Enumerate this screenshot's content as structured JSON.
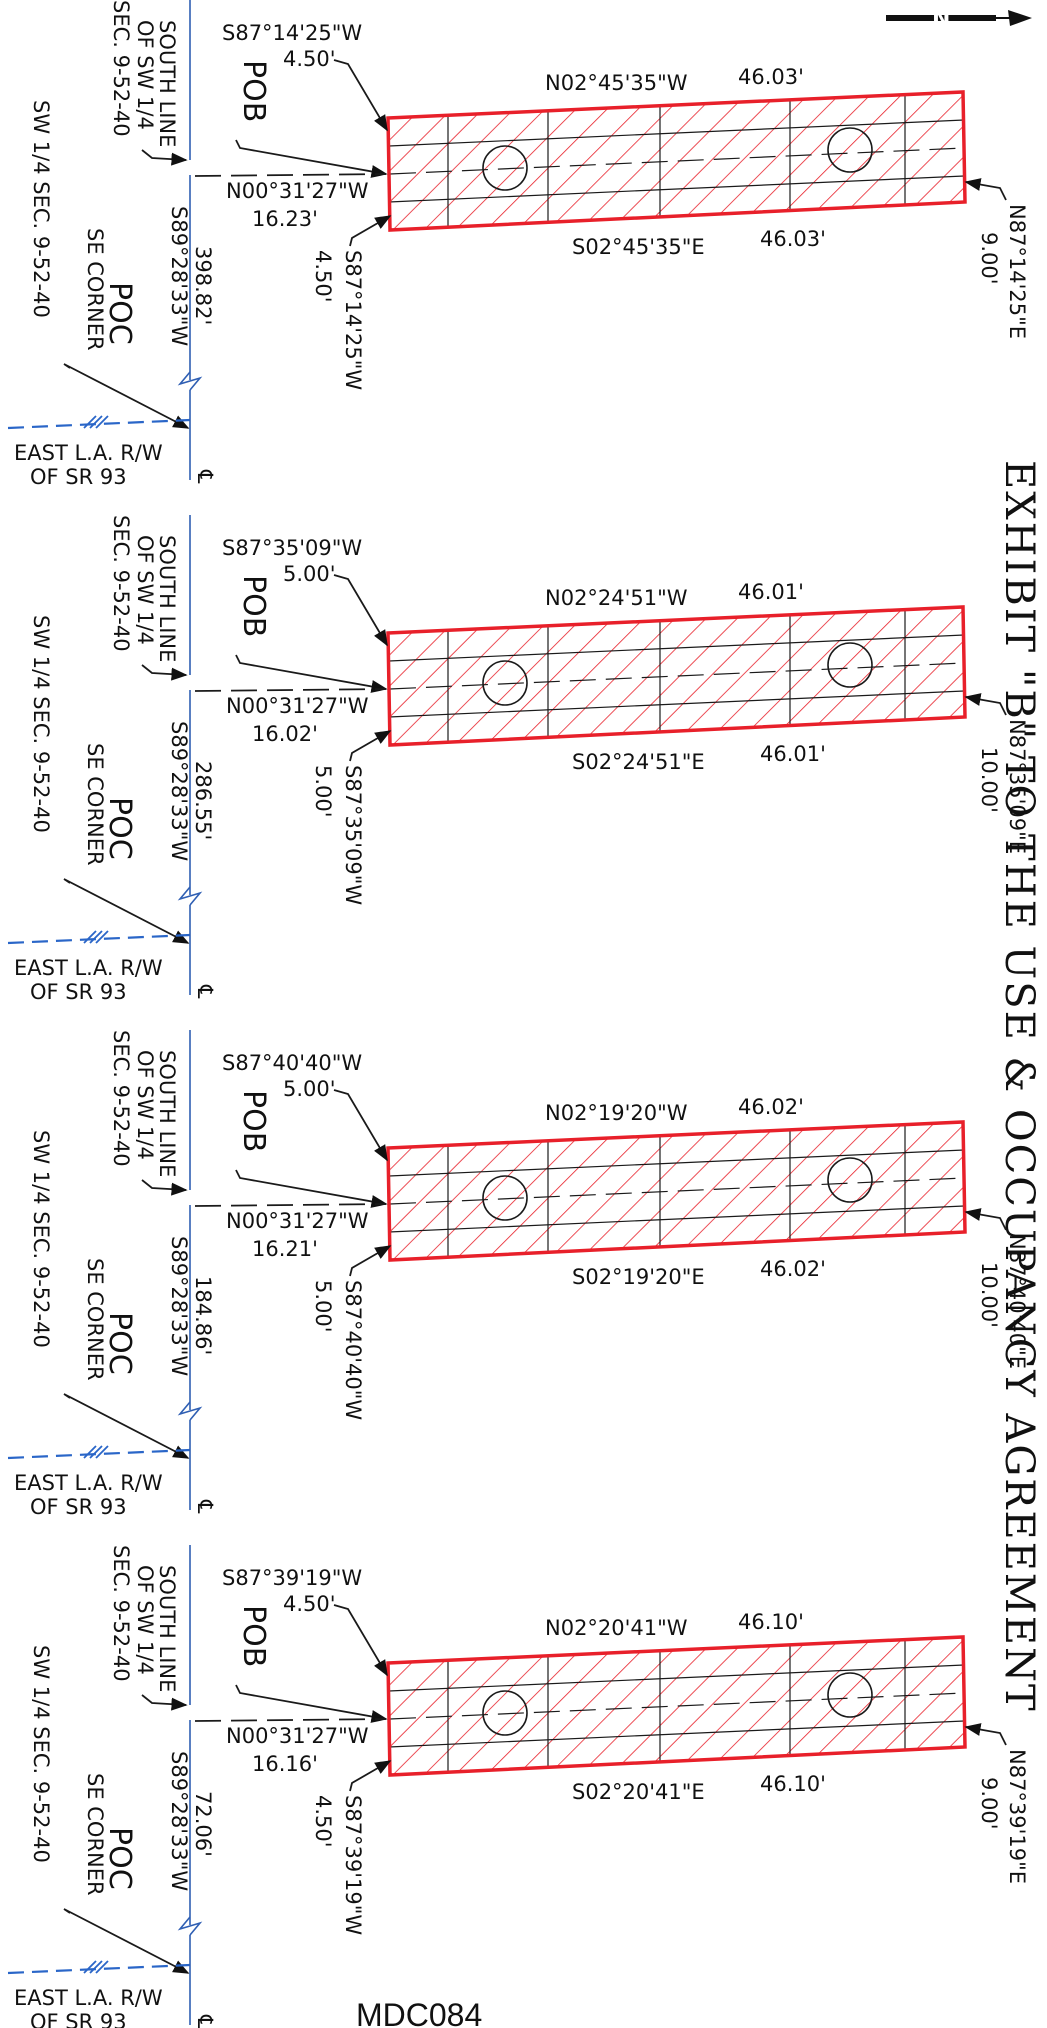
{
  "exhibit_title": "EXHIBIT   \"B\"   TO  THE  USE  &  OCCUPANCY  AGREEMENT",
  "document_id": "MDC084",
  "north_arrow": "N",
  "colors": {
    "parcel": "#e8202a",
    "line": "#1a1a1a",
    "blue_line": "#2f5fb3",
    "blue_dash": "#2a66c8"
  },
  "common": {
    "pob": "POB",
    "poc": "POC",
    "se_corner": "SE CORNER",
    "sw_quarter": "SW 1/4 SEC. 9-52-40",
    "south_line_1": "SOUTH LINE",
    "south_line_2": "OF SW 1/4",
    "south_line_3": "SEC. 9-52-40",
    "row_1": "EAST L.A. R/W",
    "row_2": "OF SR 93",
    "baseline_bearing": "S89°28'33\"W",
    "tie_bearing": "N00°31'27\"W",
    "centerline_symbol": "℄"
  },
  "parcels": [
    {
      "top_bearing": "S87°14'25\"W",
      "top_dist": "4.50'",
      "north_bearing": "N02°45'35\"W",
      "north_len": "46.03'",
      "south_bearing": "S02°45'35\"E",
      "south_len": "46.03'",
      "tie_dist": "16.23'",
      "poc_dist": "398.82'",
      "east_bearing": "N87°14'25\"E",
      "east_dist": "9.00'",
      "bot_bearing": "S87°14'25\"W",
      "bot_dist": "4.50'"
    },
    {
      "top_bearing": "S87°35'09\"W",
      "top_dist": "5.00'",
      "north_bearing": "N02°24'51\"W",
      "north_len": "46.01'",
      "south_bearing": "S02°24'51\"E",
      "south_len": "46.01'",
      "tie_dist": "16.02'",
      "poc_dist": "286.55'",
      "east_bearing": "N87°35'09\"E",
      "east_dist": "10.00'",
      "bot_bearing": "S87°35'09\"W",
      "bot_dist": "5.00'"
    },
    {
      "top_bearing": "S87°40'40\"W",
      "top_dist": "5.00'",
      "north_bearing": "N02°19'20\"W",
      "north_len": "46.02'",
      "south_bearing": "S02°19'20\"E",
      "south_len": "46.02'",
      "tie_dist": "16.21'",
      "poc_dist": "184.86'",
      "east_bearing": "N87°40'40\"E",
      "east_dist": "10.00'",
      "bot_bearing": "S87°40'40\"W",
      "bot_dist": "5.00'"
    },
    {
      "top_bearing": "S87°39'19\"W",
      "top_dist": "4.50'",
      "north_bearing": "N02°20'41\"W",
      "north_len": "46.10'",
      "south_bearing": "S02°20'41\"E",
      "south_len": "46.10'",
      "tie_dist": "16.16'",
      "poc_dist": "72.06'",
      "east_bearing": "N87°39'19\"E",
      "east_dist": "9.00'",
      "bot_bearing": "S87°39'19\"W",
      "bot_dist": "4.50'"
    }
  ]
}
